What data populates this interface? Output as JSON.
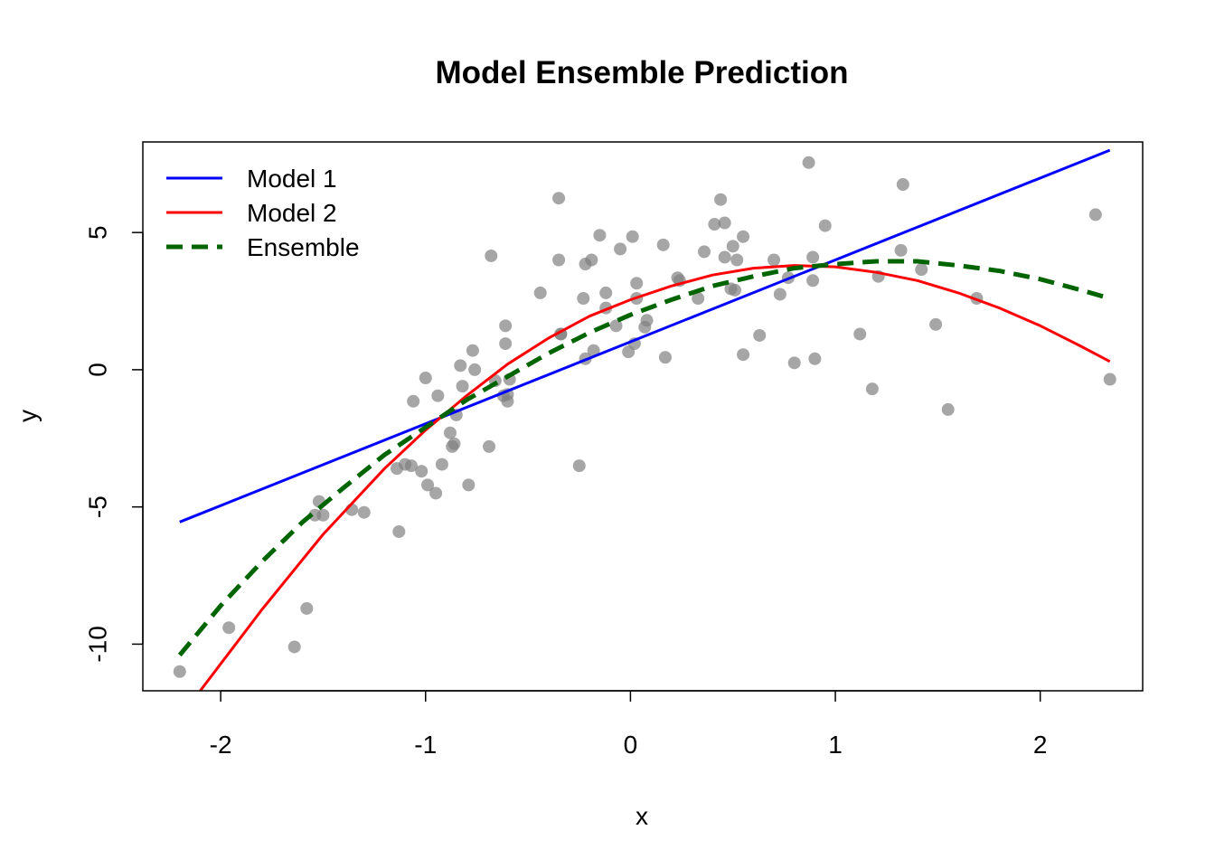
{
  "chart_data": {
    "type": "scatter",
    "title": "Model Ensemble Prediction",
    "xlabel": "x",
    "ylabel": "y",
    "xlim": [
      -2.38,
      2.5
    ],
    "ylim": [
      -11.7,
      8.3
    ],
    "x_ticks": [
      -2,
      -1,
      0,
      1,
      2
    ],
    "x_tick_labels": [
      "-2",
      "-1",
      "0",
      "1",
      "2"
    ],
    "y_ticks": [
      -10,
      -5,
      0,
      5
    ],
    "y_tick_labels": [
      "-10",
      "-5",
      "0",
      "5"
    ],
    "grid": false,
    "legend_position": "top-left",
    "legend": [
      "Model 1",
      "Model 2",
      "Ensemble"
    ],
    "points_color": "#808080",
    "points": [
      [
        -2.2,
        -11.0
      ],
      [
        -1.96,
        -9.4
      ],
      [
        -1.64,
        -10.1
      ],
      [
        -1.58,
        -8.7
      ],
      [
        -1.54,
        -5.3
      ],
      [
        -1.52,
        -4.8
      ],
      [
        -1.5,
        -5.3
      ],
      [
        -1.36,
        -5.1
      ],
      [
        -1.3,
        -5.2
      ],
      [
        -1.14,
        -3.6
      ],
      [
        -1.13,
        -5.9
      ],
      [
        -1.1,
        -3.45
      ],
      [
        -1.07,
        -3.5
      ],
      [
        -1.06,
        -1.15
      ],
      [
        -1.02,
        -3.7
      ],
      [
        -1.0,
        -0.3
      ],
      [
        -0.99,
        -4.2
      ],
      [
        -0.95,
        -4.5
      ],
      [
        -0.94,
        -0.95
      ],
      [
        -0.92,
        -3.45
      ],
      [
        -0.88,
        -2.3
      ],
      [
        -0.87,
        -2.8
      ],
      [
        -0.86,
        -2.7
      ],
      [
        -0.85,
        -1.65
      ],
      [
        -0.83,
        0.15
      ],
      [
        -0.82,
        -0.6
      ],
      [
        -0.79,
        -4.2
      ],
      [
        -0.77,
        0.7
      ],
      [
        -0.76,
        0.0
      ],
      [
        -0.69,
        -2.8
      ],
      [
        -0.68,
        4.15
      ],
      [
        -0.66,
        -0.4
      ],
      [
        -0.62,
        -0.95
      ],
      [
        -0.61,
        0.95
      ],
      [
        -0.61,
        1.6
      ],
      [
        -0.6,
        -1.15
      ],
      [
        -0.6,
        -0.9
      ],
      [
        -0.59,
        -0.35
      ],
      [
        -0.44,
        2.8
      ],
      [
        -0.35,
        6.25
      ],
      [
        -0.35,
        4.0
      ],
      [
        -0.34,
        1.3
      ],
      [
        -0.34,
        1.3
      ],
      [
        -0.25,
        -3.5
      ],
      [
        -0.23,
        2.6
      ],
      [
        -0.22,
        3.85
      ],
      [
        -0.22,
        0.4
      ],
      [
        -0.19,
        4.0
      ],
      [
        -0.18,
        0.7
      ],
      [
        -0.15,
        4.9
      ],
      [
        -0.12,
        2.8
      ],
      [
        -0.12,
        2.25
      ],
      [
        -0.07,
        1.6
      ],
      [
        -0.05,
        4.4
      ],
      [
        -0.01,
        0.65
      ],
      [
        0.01,
        4.85
      ],
      [
        0.02,
        0.95
      ],
      [
        0.03,
        3.15
      ],
      [
        0.03,
        2.6
      ],
      [
        0.07,
        1.55
      ],
      [
        0.08,
        1.8
      ],
      [
        0.16,
        4.55
      ],
      [
        0.17,
        0.45
      ],
      [
        0.23,
        3.35
      ],
      [
        0.24,
        3.25
      ],
      [
        0.33,
        2.6
      ],
      [
        0.36,
        4.3
      ],
      [
        0.41,
        5.3
      ],
      [
        0.44,
        6.2
      ],
      [
        0.46,
        4.1
      ],
      [
        0.46,
        5.35
      ],
      [
        0.49,
        2.95
      ],
      [
        0.5,
        4.5
      ],
      [
        0.51,
        2.9
      ],
      [
        0.52,
        4.0
      ],
      [
        0.55,
        4.85
      ],
      [
        0.55,
        0.55
      ],
      [
        0.63,
        1.25
      ],
      [
        0.7,
        4.0
      ],
      [
        0.73,
        2.75
      ],
      [
        0.77,
        3.35
      ],
      [
        0.8,
        0.25
      ],
      [
        0.87,
        7.55
      ],
      [
        0.89,
        4.1
      ],
      [
        0.89,
        3.25
      ],
      [
        0.9,
        0.4
      ],
      [
        0.95,
        5.25
      ],
      [
        1.12,
        1.3
      ],
      [
        1.18,
        -0.7
      ],
      [
        1.21,
        3.4
      ],
      [
        1.32,
        4.35
      ],
      [
        1.33,
        6.75
      ],
      [
        1.42,
        3.65
      ],
      [
        1.49,
        1.65
      ],
      [
        1.55,
        -1.45
      ],
      [
        1.69,
        2.6
      ],
      [
        2.27,
        5.65
      ],
      [
        2.34,
        -0.35
      ]
    ],
    "series": [
      {
        "name": "Model 1",
        "color": "#0000FF",
        "style": "solid",
        "x": [
          -2.2,
          2.34
        ],
        "y": [
          -5.55,
          8.0
        ]
      },
      {
        "name": "Model 2",
        "color": "#FF0000",
        "style": "solid",
        "x": [
          -2.1,
          -1.8,
          -1.5,
          -1.2,
          -1.0,
          -0.8,
          -0.6,
          -0.4,
          -0.2,
          0.0,
          0.2,
          0.4,
          0.6,
          0.8,
          1.0,
          1.2,
          1.4,
          1.6,
          1.8,
          2.0,
          2.2,
          2.34
        ],
        "y": [
          -11.7,
          -8.75,
          -6.0,
          -3.6,
          -2.2,
          -0.95,
          0.2,
          1.15,
          1.95,
          2.55,
          3.05,
          3.45,
          3.7,
          3.8,
          3.75,
          3.55,
          3.25,
          2.8,
          2.25,
          1.6,
          0.85,
          0.3
        ]
      },
      {
        "name": "Ensemble",
        "color": "#006400",
        "style": "dashed",
        "x": [
          -2.2,
          -2.0,
          -1.8,
          -1.6,
          -1.4,
          -1.2,
          -1.0,
          -0.8,
          -0.6,
          -0.4,
          -0.2,
          0.0,
          0.2,
          0.4,
          0.6,
          0.8,
          1.0,
          1.2,
          1.4,
          1.6,
          1.8,
          2.0,
          2.2,
          2.34
        ],
        "y": [
          -10.4,
          -8.6,
          -7.0,
          -5.55,
          -4.3,
          -3.1,
          -2.1,
          -1.1,
          -0.25,
          0.6,
          1.35,
          2.0,
          2.55,
          3.05,
          3.4,
          3.7,
          3.85,
          3.95,
          3.95,
          3.8,
          3.6,
          3.3,
          2.9,
          2.6
        ]
      }
    ]
  }
}
